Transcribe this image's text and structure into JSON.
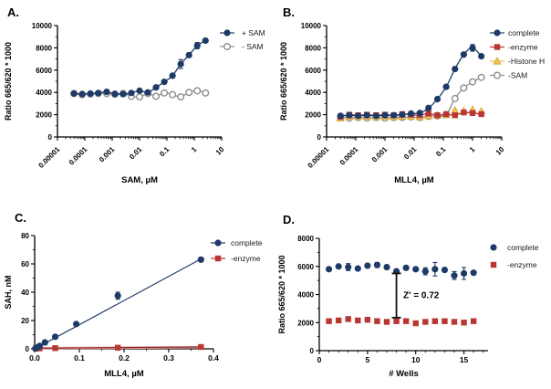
{
  "chart_data": [
    {
      "letter": "A.",
      "type": "scatter",
      "xlabel": "SAM, µM",
      "ylabel": "Ratio 665/620 * 1000",
      "xscale": "log",
      "xlim": [
        1e-05,
        10
      ],
      "ylim": [
        0,
        10000
      ],
      "xticks": [
        1e-05,
        0.0001,
        0.001,
        0.01,
        0.1,
        1,
        10
      ],
      "xtick_labels": [
        "0.00001",
        "0.0001",
        "0.001",
        "0.01",
        "0.1",
        "1",
        "10"
      ],
      "yticks": [
        0,
        2000,
        4000,
        6000,
        8000,
        10000
      ],
      "y_minor": 1000,
      "legend_position": "right",
      "series": [
        {
          "name": "+ SAM",
          "marker": "circle",
          "color": "#1e3a66",
          "line": "smooth",
          "x": [
            4e-05,
            8e-05,
            0.00016,
            0.00031,
            0.00063,
            0.00125,
            0.0025,
            0.005,
            0.01,
            0.02,
            0.04,
            0.08,
            0.16,
            0.32,
            0.64,
            1.28,
            2.56
          ],
          "y": [
            3900,
            3850,
            3900,
            3950,
            4050,
            3850,
            3850,
            3950,
            4150,
            4000,
            4450,
            4950,
            5500,
            6550,
            7350,
            8200,
            8650
          ],
          "err": [
            0,
            0,
            0,
            0,
            0,
            0,
            0,
            0,
            0,
            0,
            0,
            0,
            0,
            400,
            0,
            280,
            0
          ]
        },
        {
          "name": "- SAM",
          "marker": "circle-open",
          "color": "#8e8e8e",
          "line": "smooth",
          "x": [
            4e-05,
            8e-05,
            0.00016,
            0.00031,
            0.00063,
            0.00125,
            0.0025,
            0.005,
            0.01,
            0.02,
            0.04,
            0.08,
            0.16,
            0.32,
            0.64,
            1.28,
            2.56
          ],
          "y": [
            3900,
            3800,
            3850,
            3900,
            3900,
            3850,
            3900,
            3650,
            3600,
            3900,
            3650,
            3950,
            3800,
            3600,
            4000,
            4150,
            3950
          ],
          "err": []
        }
      ]
    },
    {
      "letter": "B.",
      "type": "scatter",
      "xlabel": "MLL4, µM",
      "ylabel": "Ratio 665/620 * 1000",
      "xscale": "log",
      "xlim": [
        1e-05,
        10
      ],
      "ylim": [
        0,
        10000
      ],
      "xticks": [
        1e-05,
        0.0001,
        0.001,
        0.01,
        0.1,
        1,
        10
      ],
      "xtick_labels": [
        "0.00001",
        "0.0001",
        "0.001",
        "0.01",
        "0.1",
        "1",
        "10"
      ],
      "yticks": [
        0,
        2000,
        4000,
        6000,
        8000,
        10000
      ],
      "y_minor": 1000,
      "legend_position": "right",
      "series": [
        {
          "name": "complete",
          "marker": "circle",
          "color": "#1e3a66",
          "line": "smooth",
          "x": [
            3e-05,
            6e-05,
            0.00012,
            0.00024,
            0.0005,
            0.001,
            0.002,
            0.0039,
            0.0078,
            0.0156,
            0.031,
            0.0625,
            0.125,
            0.25,
            0.5,
            1.0,
            2.0
          ],
          "y": [
            1900,
            1950,
            1900,
            1950,
            1900,
            1950,
            1950,
            2000,
            2100,
            2150,
            2600,
            3400,
            4500,
            6100,
            7400,
            8000,
            7250
          ],
          "err": [
            0,
            0,
            0,
            0,
            0,
            0,
            0,
            0,
            0,
            0,
            0,
            0,
            0,
            0,
            0,
            300,
            0
          ]
        },
        {
          "name": "-enzyme",
          "marker": "square",
          "color": "#b93732",
          "line": "smooth",
          "x": [
            3e-05,
            6e-05,
            0.00012,
            0.00024,
            0.0005,
            0.001,
            0.002,
            0.0039,
            0.0078,
            0.0156,
            0.031,
            0.0625,
            0.125,
            0.25,
            0.5,
            1.0,
            2.0
          ],
          "y": [
            1800,
            2000,
            1950,
            2000,
            1950,
            2000,
            1950,
            2050,
            2000,
            1950,
            2100,
            1950,
            2050,
            1950,
            2200,
            2150,
            2050
          ],
          "err": []
        },
        {
          "name": "-Histone H",
          "marker": "triangle",
          "color": "#f2c14e",
          "line": "none",
          "x": [
            3e-05,
            6e-05,
            0.00012,
            0.00024,
            0.0005,
            0.001,
            0.002,
            0.0039,
            0.0078,
            0.0156,
            0.031,
            0.0625,
            0.125,
            0.25,
            0.5,
            1.0,
            2.0
          ],
          "y": [
            1700,
            1850,
            1800,
            1850,
            1800,
            1850,
            1800,
            1850,
            1850,
            1800,
            1900,
            1950,
            2000,
            2400,
            2350,
            2450,
            2300
          ],
          "err": []
        },
        {
          "name": "-SAM",
          "marker": "circle-open",
          "color": "#8e8e8e",
          "line": "smooth",
          "x": [
            3e-05,
            6e-05,
            0.00012,
            0.00024,
            0.0005,
            0.001,
            0.002,
            0.0039,
            0.0078,
            0.0156,
            0.031,
            0.0625,
            0.125,
            0.25,
            0.5,
            1.0,
            2.0
          ],
          "y": [
            1750,
            1700,
            1750,
            1700,
            1750,
            1700,
            1750,
            1750,
            1800,
            1750,
            1850,
            1900,
            2000,
            3450,
            4400,
            4950,
            5350
          ],
          "err": []
        }
      ]
    },
    {
      "letter": "C.",
      "type": "scatter",
      "xlabel": "MLL4, µM",
      "ylabel": "SAH, nM",
      "xscale": "linear",
      "xlim": [
        0,
        0.4
      ],
      "ylim": [
        0,
        80
      ],
      "xticks": [
        0,
        0.1,
        0.2,
        0.3,
        0.4
      ],
      "xtick_labels": [
        "0.0",
        "0.1",
        "0.2",
        "0.3",
        "0.4"
      ],
      "x_minor": 0.05,
      "yticks": [
        0,
        20,
        40,
        60,
        80
      ],
      "y_minor": 10,
      "legend_position": "right",
      "trends": [
        {
          "x1": 0.002,
          "y1": 0.5,
          "x2": 0.378,
          "y2": 1.1,
          "color": "#e29a9a",
          "w": 2.6
        },
        {
          "x1": 0.002,
          "y1": 0.4,
          "x2": 0.378,
          "y2": 1.3,
          "color": "#8b2525",
          "w": 1.1
        },
        {
          "x1": 0.002,
          "y1": 0.3,
          "x2": 0.378,
          "y2": 64.5,
          "color": "#1e3a66",
          "w": 1.2
        }
      ],
      "series": [
        {
          "name": "complete",
          "marker": "circle",
          "color": "#1e3a66",
          "line": "none",
          "x": [
            0.0015,
            0.003,
            0.006,
            0.011,
            0.023,
            0.046,
            0.093,
            0.186,
            0.372
          ],
          "y": [
            0.3,
            0.5,
            1,
            2,
            4.5,
            8.5,
            17.5,
            37.5,
            63
          ],
          "err": [
            0,
            0,
            0,
            0,
            0,
            0,
            0,
            2.5,
            0
          ]
        },
        {
          "name": "-enzyme",
          "marker": "square",
          "color": "#b93732",
          "line": "none",
          "x": [
            0.003,
            0.011,
            0.046,
            0.186,
            0.372
          ],
          "y": [
            0.2,
            0.3,
            0.5,
            0.8,
            1.3
          ],
          "err": []
        }
      ]
    },
    {
      "letter": "D.",
      "type": "scatter",
      "xlabel": "# Wells",
      "ylabel": "Ratio 665/620 * 1000",
      "xscale": "linear",
      "xlim": [
        0,
        17.5
      ],
      "ylim": [
        0,
        8000
      ],
      "xticks": [
        0,
        5,
        10,
        15
      ],
      "xtick_labels": [
        "0",
        "5",
        "10",
        "15"
      ],
      "x_minor": 1,
      "yticks": [
        0,
        2000,
        4000,
        6000,
        8000
      ],
      "y_minor": 1000,
      "legend_position": "right",
      "annotation": {
        "text": "Z' = 0.72",
        "x": 8,
        "y_low": 2350,
        "y_high": 5500,
        "text_x": 8.7,
        "text_y": 3750,
        "color": "#111111"
      },
      "series": [
        {
          "name": "complete",
          "marker": "circle",
          "color": "#1e3a66",
          "line": "none",
          "x": [
            1,
            2,
            3,
            4,
            5,
            6,
            7,
            8,
            9,
            10,
            11,
            12,
            13,
            14,
            15,
            16
          ],
          "y": [
            5800,
            6000,
            5950,
            5850,
            6050,
            6100,
            5950,
            5650,
            5900,
            5800,
            5650,
            5800,
            5750,
            5350,
            5500,
            5550
          ],
          "err": [
            100,
            80,
            250,
            100,
            100,
            180,
            100,
            0,
            100,
            80,
            250,
            480,
            120,
            280,
            420,
            120
          ]
        },
        {
          "name": "-enzyme",
          "marker": "square",
          "color": "#b93732",
          "line": "none",
          "x": [
            1,
            2,
            3,
            4,
            5,
            6,
            7,
            8,
            9,
            10,
            11,
            12,
            13,
            14,
            15,
            16
          ],
          "y": [
            2100,
            2150,
            2250,
            2150,
            2200,
            2100,
            2050,
            2100,
            2100,
            1950,
            2050,
            2100,
            2100,
            2050,
            2000,
            2100
          ],
          "err": []
        }
      ]
    }
  ],
  "colors": {
    "navy": "#1e3a66",
    "red": "#b93732",
    "yellow": "#f2c14e",
    "gray": "#8e8e8e",
    "axis": "#000000",
    "background": "#ffffff"
  }
}
